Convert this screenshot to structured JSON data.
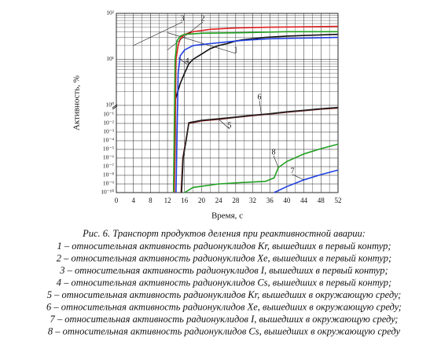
{
  "chart_data": {
    "type": "line",
    "ylabel": "Активность, %",
    "xlabel": "Время, с",
    "xlim": [
      0,
      52
    ],
    "xticks": [
      0,
      4,
      8,
      12,
      16,
      20,
      24,
      28,
      32,
      36,
      40,
      44,
      48,
      52
    ],
    "ylim": [
      1e-10,
      100
    ],
    "log_scale": true,
    "axis_break": 1,
    "grid": true,
    "yticks": [
      {
        "value": 1e-10,
        "label": "10⁻¹⁰"
      },
      {
        "value": 1e-09,
        "label": "10⁻⁹"
      },
      {
        "value": 1e-08,
        "label": "10⁻⁸"
      },
      {
        "value": 1e-07,
        "label": "10⁻⁷"
      },
      {
        "value": 1e-06,
        "label": "10⁻⁶"
      },
      {
        "value": 1e-05,
        "label": "10⁻⁵"
      },
      {
        "value": 0.0001,
        "label": "10⁻⁴"
      },
      {
        "value": 0.001,
        "label": "10⁻³"
      },
      {
        "value": 0.01,
        "label": "10⁻²"
      },
      {
        "value": 0.1,
        "label": "10⁻¹"
      },
      {
        "value": 1,
        "label": "10⁰"
      },
      {
        "value": 10,
        "label": "10¹"
      },
      {
        "value": 100,
        "label": "10²"
      }
    ],
    "series": [
      {
        "name": "1",
        "color": "#111111",
        "x": [
          13.5,
          13.8,
          15,
          16,
          17,
          18,
          20,
          22,
          24,
          26,
          28,
          30,
          35,
          40,
          52
        ],
        "values": [
          1e-10,
          1.3,
          3,
          5,
          8,
          10,
          13,
          17,
          20,
          22,
          25,
          27,
          30,
          32,
          35
        ]
      },
      {
        "name": "2",
        "color": "#e02020",
        "x": [
          13.6,
          14,
          14.5,
          15,
          16,
          18,
          22,
          28,
          36,
          52
        ],
        "values": [
          1e-10,
          10,
          20,
          28,
          35,
          40,
          45,
          48,
          50,
          52
        ]
      },
      {
        "name": "3",
        "color": "#20a020",
        "x": [
          13.4,
          13.8,
          14.2,
          15,
          16,
          20,
          30,
          40,
          52
        ],
        "values": [
          1e-10,
          10,
          25,
          32,
          35,
          37,
          38,
          40,
          40
        ]
      },
      {
        "name": "4",
        "color": "#2040e0",
        "x": [
          14,
          14.5,
          15,
          16,
          18,
          22,
          26,
          30,
          36,
          44,
          52
        ],
        "values": [
          1e-10,
          5,
          12,
          16,
          20,
          22,
          24,
          26,
          28,
          29,
          30
        ]
      },
      {
        "name": "5",
        "color": "#7a1010",
        "x": [
          15.2,
          15.6,
          16.3,
          17,
          20,
          24,
          28,
          32,
          36,
          40,
          44,
          48,
          52
        ],
        "values": [
          1e-10,
          1e-06,
          0.0001,
          0.01,
          0.02,
          0.03,
          0.05,
          0.08,
          0.12,
          0.2,
          0.3,
          0.45,
          0.6
        ]
      },
      {
        "name": "6",
        "color": "#222222",
        "x": [
          15.3,
          15.7,
          16.4,
          17,
          20,
          24,
          28,
          32,
          36,
          40,
          44,
          48,
          52
        ],
        "values": [
          1e-10,
          1.2e-06,
          0.00012,
          0.012,
          0.023,
          0.035,
          0.055,
          0.09,
          0.13,
          0.22,
          0.33,
          0.5,
          0.7
        ]
      },
      {
        "name": "7",
        "color": "#2040e0",
        "x": [
          37,
          40,
          44,
          48,
          52
        ],
        "values": [
          1e-10,
          5e-10,
          3e-09,
          1.2e-08,
          4e-08
        ]
      },
      {
        "name": "8",
        "color": "#20a020",
        "x": [
          16,
          18,
          24,
          30,
          35,
          37,
          38,
          40,
          44,
          48,
          52
        ],
        "values": [
          1e-10,
          4e-10,
          1e-09,
          1.5e-09,
          2e-09,
          5e-09,
          8e-08,
          4e-07,
          3e-06,
          1.2e-05,
          4e-05
        ]
      }
    ]
  },
  "caption": {
    "title": "Рис. 6. Транспорт продуктов деления при реактивностной аварии:",
    "lines": [
      "1 – относительная активность радионуклидов Kr, вышедших в первый контур;",
      "2 – относительная активность радионуклидов Xe, вышедших в первый контур;",
      "3 – относительная активность радионуклидов I, вышедших в первый контур;",
      "4 – относительная активность радионуклидов Cs, вышедших в первый контур;",
      "5 – относительная активность радионуклидов Kr, вышедших в окружающую среду;",
      "6 – относительная активность радионуклидов Xe, вышедших в окружающую среду;",
      "7 – относительная активность радионуклидов I, вышедших в окружающую среду;",
      "8 – относительная активность радионуклидов Cs, вышедших в окружающую среду"
    ]
  }
}
